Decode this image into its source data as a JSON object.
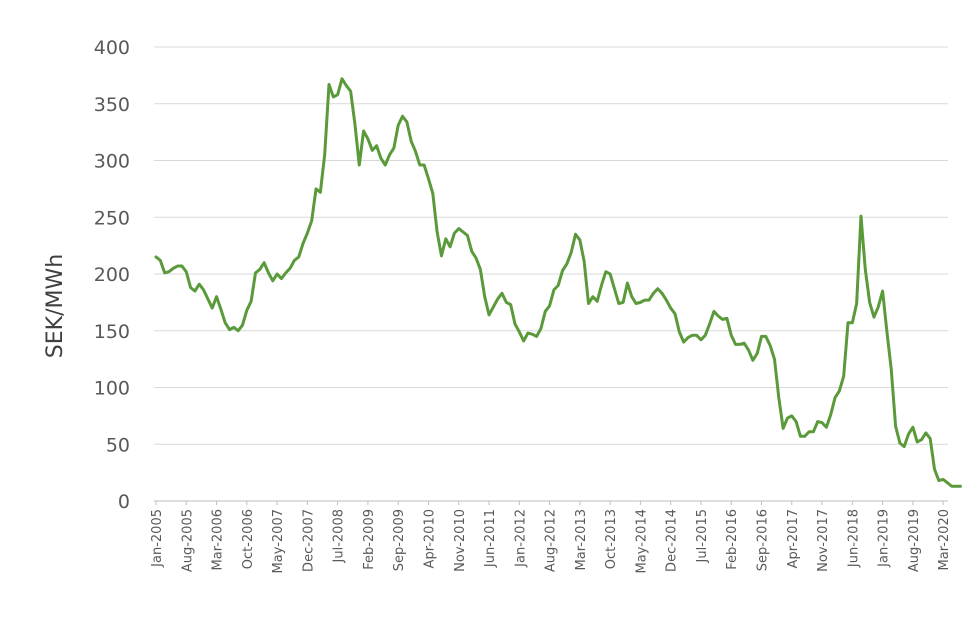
{
  "chart_data": {
    "type": "line",
    "title": "",
    "xlabel": "",
    "ylabel": "SEK/MWh",
    "ylim": [
      0,
      400
    ],
    "yticks": [
      0,
      50,
      100,
      150,
      200,
      250,
      300,
      350,
      400
    ],
    "grid": true,
    "legend": "none",
    "color": "#5a9a3a",
    "tick_labels": [
      "Jan-2005",
      "Aug-2005",
      "Mar-2006",
      "Oct-2006",
      "May-2007",
      "Dec-2007",
      "Jul-2008",
      "Feb-2009",
      "Sep-2009",
      "Apr-2010",
      "Nov-2010",
      "Jun-2011",
      "Jan-2012",
      "Aug-2012",
      "Mar-2013",
      "Oct-2013",
      "May-2014",
      "Dec-2014",
      "Jul-2015",
      "Feb-2016",
      "Sep-2016",
      "Apr-2017",
      "Nov-2017",
      "Jun-2018",
      "Jan-2019",
      "Aug-2019",
      "Mar-2020"
    ],
    "x": [
      "Jan-2005",
      "Feb-2005",
      "Mar-2005",
      "Apr-2005",
      "May-2005",
      "Jun-2005",
      "Jul-2005",
      "Aug-2005",
      "Sep-2005",
      "Oct-2005",
      "Nov-2005",
      "Dec-2005",
      "Jan-2006",
      "Feb-2006",
      "Mar-2006",
      "Apr-2006",
      "May-2006",
      "Jun-2006",
      "Jul-2006",
      "Aug-2006",
      "Sep-2006",
      "Oct-2006",
      "Nov-2006",
      "Dec-2006",
      "Jan-2007",
      "Feb-2007",
      "Mar-2007",
      "Apr-2007",
      "May-2007",
      "Jun-2007",
      "Jul-2007",
      "Aug-2007",
      "Sep-2007",
      "Oct-2007",
      "Nov-2007",
      "Dec-2007",
      "Jan-2008",
      "Feb-2008",
      "Mar-2008",
      "Apr-2008",
      "May-2008",
      "Jun-2008",
      "Jul-2008",
      "Aug-2008",
      "Sep-2008",
      "Oct-2008",
      "Nov-2008",
      "Dec-2008",
      "Jan-2009",
      "Feb-2009",
      "Mar-2009",
      "Apr-2009",
      "May-2009",
      "Jun-2009",
      "Jul-2009",
      "Aug-2009",
      "Sep-2009",
      "Oct-2009",
      "Nov-2009",
      "Dec-2009",
      "Jan-2010",
      "Feb-2010",
      "Mar-2010",
      "Apr-2010",
      "May-2010",
      "Jun-2010",
      "Jul-2010",
      "Aug-2010",
      "Sep-2010",
      "Oct-2010",
      "Nov-2010",
      "Dec-2010",
      "Jan-2011",
      "Feb-2011",
      "Mar-2011",
      "Apr-2011",
      "May-2011",
      "Jun-2011",
      "Jul-2011",
      "Aug-2011",
      "Sep-2011",
      "Oct-2011",
      "Nov-2011",
      "Dec-2011",
      "Jan-2012",
      "Feb-2012",
      "Mar-2012",
      "Apr-2012",
      "May-2012",
      "Jun-2012",
      "Jul-2012",
      "Aug-2012",
      "Sep-2012",
      "Oct-2012",
      "Nov-2012",
      "Dec-2012",
      "Jan-2013",
      "Feb-2013",
      "Mar-2013",
      "Apr-2013",
      "May-2013",
      "Jun-2013",
      "Jul-2013",
      "Aug-2013",
      "Sep-2013",
      "Oct-2013",
      "Nov-2013",
      "Dec-2013",
      "Jan-2014",
      "Feb-2014",
      "Mar-2014",
      "Apr-2014",
      "May-2014",
      "Jun-2014",
      "Jul-2014",
      "Aug-2014",
      "Sep-2014",
      "Oct-2014",
      "Nov-2014",
      "Dec-2014",
      "Jan-2015",
      "Feb-2015",
      "Mar-2015",
      "Apr-2015",
      "May-2015",
      "Jun-2015",
      "Jul-2015",
      "Aug-2015",
      "Sep-2015",
      "Oct-2015",
      "Nov-2015",
      "Dec-2015",
      "Jan-2016",
      "Feb-2016",
      "Mar-2016",
      "Apr-2016",
      "May-2016",
      "Jun-2016",
      "Jul-2016",
      "Aug-2016",
      "Sep-2016",
      "Oct-2016",
      "Nov-2016",
      "Dec-2016",
      "Jan-2017",
      "Feb-2017",
      "Mar-2017",
      "Apr-2017",
      "May-2017",
      "Jun-2017",
      "Jul-2017",
      "Aug-2017",
      "Sep-2017",
      "Oct-2017",
      "Nov-2017",
      "Dec-2017",
      "Jan-2018",
      "Feb-2018",
      "Mar-2018",
      "Apr-2018",
      "May-2018",
      "Jun-2018",
      "Jul-2018",
      "Aug-2018",
      "Sep-2018",
      "Oct-2018",
      "Nov-2018",
      "Dec-2018",
      "Jan-2019",
      "Feb-2019",
      "Mar-2019",
      "Apr-2019",
      "May-2019",
      "Jun-2019",
      "Jul-2019",
      "Aug-2019",
      "Sep-2019",
      "Oct-2019",
      "Nov-2019",
      "Dec-2019",
      "Jan-2020",
      "Feb-2020",
      "Mar-2020",
      "Apr-2020",
      "May-2020",
      "Jun-2020",
      "Jul-2020"
    ],
    "series": [
      {
        "values": [
          215,
          212,
          201,
          202,
          205,
          207,
          207,
          202,
          188,
          185,
          191,
          186,
          178,
          170,
          180,
          169,
          157,
          151,
          153,
          150,
          155,
          168,
          176,
          201,
          204,
          210,
          201,
          194,
          200,
          196,
          201,
          205,
          212,
          215,
          227,
          236,
          247,
          275,
          272,
          305,
          367,
          356,
          358,
          372,
          366,
          361,
          332,
          296,
          326,
          319,
          309,
          313,
          302,
          296,
          305,
          311,
          331,
          339,
          334,
          317,
          308,
          296,
          296,
          284,
          271,
          237,
          216,
          231,
          224,
          236,
          240,
          237,
          234,
          220,
          214,
          204,
          180,
          164,
          171,
          178,
          183,
          175,
          173,
          156,
          149,
          141,
          148,
          147,
          145,
          152,
          167,
          172,
          186,
          190,
          203,
          209,
          219,
          235,
          230,
          211,
          174,
          180,
          176,
          190,
          202,
          200,
          187,
          174,
          175,
          192,
          180,
          174,
          175,
          177,
          177,
          183,
          187,
          183,
          177,
          170,
          165,
          149,
          140,
          144,
          146,
          146,
          142,
          146,
          156,
          167,
          163,
          160,
          161,
          146,
          138,
          138,
          139,
          133,
          124,
          130,
          145,
          145,
          137,
          125,
          91,
          64,
          73,
          75,
          70,
          57,
          57,
          61,
          61,
          70,
          69,
          65,
          76,
          91,
          97,
          110,
          157,
          157,
          174,
          251,
          204,
          175,
          162,
          171,
          185,
          149,
          116,
          66,
          51,
          48,
          59,
          65,
          52,
          54,
          60,
          55,
          28,
          18,
          19,
          16,
          13,
          13,
          13
        ]
      }
    ]
  }
}
